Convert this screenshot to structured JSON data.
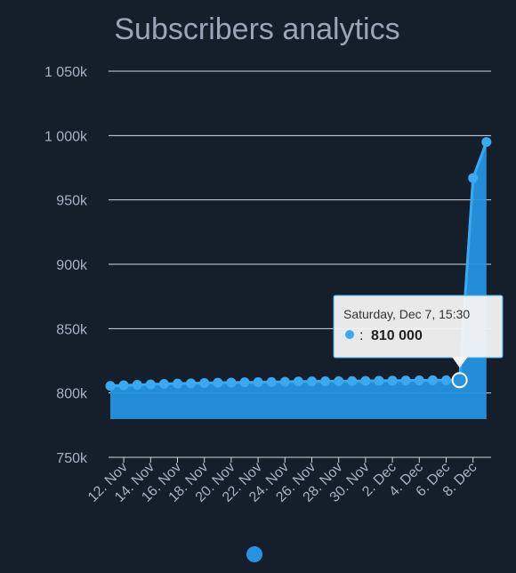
{
  "colors": {
    "background": "#151e2b",
    "series": "#3ba9f0",
    "area": "#2593e0",
    "grid": "#d4d8df"
  },
  "chart_data": {
    "type": "area",
    "title": "Subscribers analytics",
    "ylim": [
      750000,
      1050000
    ],
    "yticks": [
      750000,
      800000,
      850000,
      900000,
      950000,
      1000000,
      1050000
    ],
    "ytick_labels": [
      "750k",
      "800k",
      "850k",
      "900k",
      "950k",
      "1 000k",
      "1 050k"
    ],
    "xtick_labels": [
      "12. Nov",
      "14. Nov",
      "16. Nov",
      "18. Nov",
      "20. Nov",
      "22. Nov",
      "24. Nov",
      "26. Nov",
      "28. Nov",
      "30. Nov",
      "2. Dec",
      "4. Dec",
      "6. Dec",
      "8. Dec"
    ],
    "grid": true,
    "legend": "bottom-center",
    "series": [
      {
        "x": [
          "11. Nov",
          "12. Nov",
          "13. Nov",
          "14. Nov",
          "15. Nov",
          "16. Nov",
          "17. Nov",
          "18. Nov",
          "19. Nov",
          "20. Nov",
          "21. Nov",
          "22. Nov",
          "23. Nov",
          "24. Nov",
          "25. Nov",
          "26. Nov",
          "27. Nov",
          "28. Nov",
          "29. Nov",
          "30. Nov",
          "1. Dec",
          "2. Dec",
          "3. Dec",
          "4. Dec",
          "5. Dec",
          "6. Dec",
          "7. Dec",
          "8. Dec",
          "9. Dec"
        ],
        "values": [
          805500,
          806000,
          806300,
          806700,
          807000,
          807300,
          807500,
          807700,
          808000,
          808100,
          808300,
          808400,
          808500,
          808700,
          808900,
          809000,
          809100,
          809200,
          809300,
          809400,
          809500,
          809600,
          809700,
          809800,
          809850,
          809900,
          810000,
          967000,
          995000
        ]
      }
    ],
    "tooltip": {
      "date": "Saturday, Dec 7, 15:30",
      "prefix": ":",
      "value": "810 000",
      "index": 26
    }
  }
}
